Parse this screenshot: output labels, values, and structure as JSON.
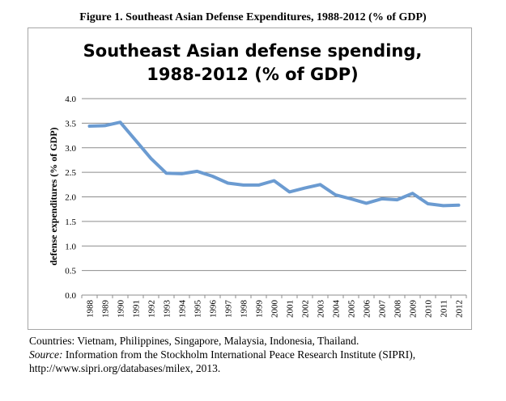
{
  "figure_title": "Figure 1. Southeast Asian Defense Expenditures, 1988-2012 (% of GDP)",
  "chart_data": {
    "type": "line",
    "title_lines": [
      "Southeast Asian defense spending,",
      "1988-2012 (% of GDP)"
    ],
    "xlabel": "",
    "ylabel": "defense expenditures (% of GDP)",
    "ylim": [
      0,
      4.0
    ],
    "y_ticks": [
      "0.0",
      "0.5",
      "1.0",
      "1.5",
      "2.0",
      "2.5",
      "3.0",
      "3.5",
      "4.0"
    ],
    "x": [
      "1988",
      "1989",
      "1990",
      "1991",
      "1992",
      "1993",
      "1994",
      "1995",
      "1996",
      "1997",
      "1998",
      "1999",
      "2000",
      "2001",
      "2002",
      "2003",
      "2004",
      "2005",
      "2006",
      "2007",
      "2008",
      "2009",
      "2010",
      "2011",
      "2012"
    ],
    "series": [
      {
        "values": [
          3.44,
          3.45,
          3.52,
          3.15,
          2.78,
          2.48,
          2.47,
          2.52,
          2.42,
          2.28,
          2.24,
          2.24,
          2.33,
          2.1,
          2.18,
          2.25,
          2.04,
          1.96,
          1.87,
          1.96,
          1.94,
          2.07,
          1.86,
          1.82,
          1.83
        ],
        "color": "#6b9bd1"
      }
    ],
    "grid": true,
    "legend": "none"
  },
  "caption": {
    "line1": "Countries: Vietnam, Philippines, Singapore, Malaysia, Indonesia, Thailand.",
    "source_label": "Source:",
    "source_text": " Information from the Stockholm International Peace Research Institute (SIPRI),",
    "line3": "http://www.sipri.org/databases/milex, 2013."
  },
  "colors": {
    "gridline": "#8c8c8c",
    "frame": "#a6a6a6",
    "line": "#6b9bd1"
  }
}
